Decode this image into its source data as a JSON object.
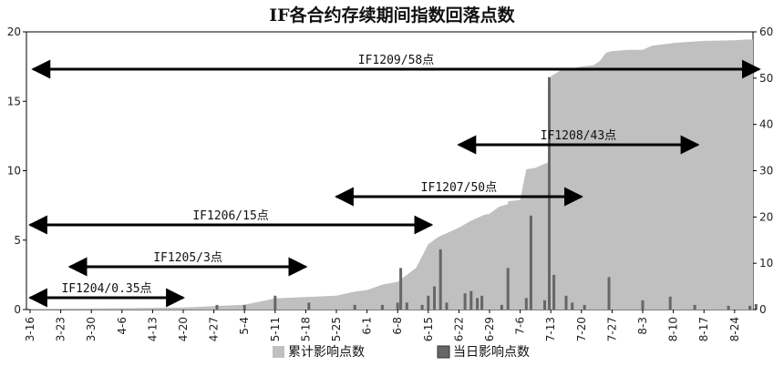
{
  "chart_data": {
    "type": "bar",
    "title": "IF各合约存续期间指数回落点数",
    "xlabel": "",
    "ylabel_left": "",
    "ylabel_right": "",
    "ylim_left": [
      0,
      20
    ],
    "yticks_left": [
      "0",
      "5",
      "10",
      "15",
      "20"
    ],
    "ylim_right": [
      0,
      60
    ],
    "yticks_right": [
      "0",
      "10",
      "20",
      "30",
      "40",
      "50",
      "60"
    ],
    "categories": [
      "3-16",
      "3-23",
      "3-30",
      "4-6",
      "4-13",
      "4-20",
      "4-27",
      "5-4",
      "5-11",
      "5-18",
      "5-25",
      "6-1",
      "6-8",
      "6-15",
      "6-22",
      "6-29",
      "7-6",
      "7-13",
      "7-20",
      "7-27",
      "8-3",
      "8-10",
      "8-17",
      "8-24"
    ],
    "legend_position": "bottom",
    "series": [
      {
        "name": "累计影响点数",
        "kind": "area",
        "axis": "left",
        "color": "#c0c0c0",
        "points": [
          [
            0,
            0.05
          ],
          [
            3,
            0.1
          ],
          [
            5,
            0.15
          ],
          [
            6,
            0.25
          ],
          [
            7,
            0.35
          ],
          [
            8,
            0.8
          ],
          [
            9,
            0.9
          ],
          [
            10,
            1.0
          ],
          [
            10.6,
            1.3
          ],
          [
            11,
            1.4
          ],
          [
            11.5,
            1.8
          ],
          [
            12,
            2.0
          ],
          [
            12.6,
            3.0
          ],
          [
            13,
            4.7
          ],
          [
            13.3,
            5.2
          ],
          [
            14,
            5.9
          ],
          [
            14.4,
            6.4
          ],
          [
            14.8,
            6.8
          ],
          [
            15,
            6.9
          ],
          [
            15.3,
            7.4
          ],
          [
            15.6,
            7.6
          ],
          [
            15.6,
            7.8
          ],
          [
            16,
            7.9
          ],
          [
            16.2,
            10.1
          ],
          [
            16.5,
            10.2
          ],
          [
            16.8,
            10.5
          ],
          [
            16.95,
            10.6
          ],
          [
            17.0,
            16.8
          ],
          [
            17.3,
            17.2
          ],
          [
            18,
            17.5
          ],
          [
            18.4,
            17.6
          ],
          [
            18.6,
            17.9
          ],
          [
            18.8,
            18.5
          ],
          [
            19,
            18.6
          ],
          [
            19.5,
            18.7
          ],
          [
            20,
            18.7
          ],
          [
            20.3,
            19.0
          ],
          [
            21,
            19.2
          ],
          [
            22,
            19.35
          ],
          [
            23,
            19.4
          ],
          [
            23.4,
            19.45
          ]
        ]
      },
      {
        "name": "当日影响点数",
        "kind": "bar",
        "axis": "right",
        "color": "#666666",
        "points": [
          [
            6.1,
            1
          ],
          [
            7.0,
            1
          ],
          [
            8.0,
            3
          ],
          [
            9.1,
            1.5
          ],
          [
            10.6,
            1
          ],
          [
            11.5,
            1
          ],
          [
            12.0,
            1.5
          ],
          [
            12.1,
            9
          ],
          [
            12.3,
            1.5
          ],
          [
            12.8,
            1
          ],
          [
            13.0,
            3
          ],
          [
            13.2,
            5
          ],
          [
            13.4,
            13
          ],
          [
            13.6,
            1.5
          ],
          [
            14.2,
            3.5
          ],
          [
            14.4,
            4
          ],
          [
            14.6,
            2.5
          ],
          [
            14.75,
            3
          ],
          [
            15.4,
            1
          ],
          [
            15.6,
            9
          ],
          [
            16.2,
            2.5
          ],
          [
            16.35,
            20.3
          ],
          [
            16.8,
            2
          ],
          [
            16.95,
            50.2
          ],
          [
            17.1,
            7.5
          ],
          [
            17.5,
            3
          ],
          [
            17.7,
            1.5
          ],
          [
            18.1,
            1
          ],
          [
            18.9,
            7
          ],
          [
            20.0,
            2
          ],
          [
            20.9,
            2.8
          ],
          [
            21.7,
            1
          ],
          [
            22.8,
            0.8
          ],
          [
            23.5,
            0.8
          ],
          [
            23.7,
            1.2
          ]
        ]
      }
    ],
    "annotations": [
      {
        "label": "IF1204/0.35点",
        "from": 0,
        "to": 5
      },
      {
        "label": "IF1205/3点",
        "from": 1.3,
        "to": 9
      },
      {
        "label": "IF1206/15点",
        "from": 0,
        "to": 13.1
      },
      {
        "label": "IF1207/50点",
        "from": 10,
        "to": 18
      },
      {
        "label": "IF1208/43点",
        "from": 14,
        "to": 21.8
      },
      {
        "label": "IF1209/58点",
        "from": 0.1,
        "to": 23.8
      }
    ]
  }
}
